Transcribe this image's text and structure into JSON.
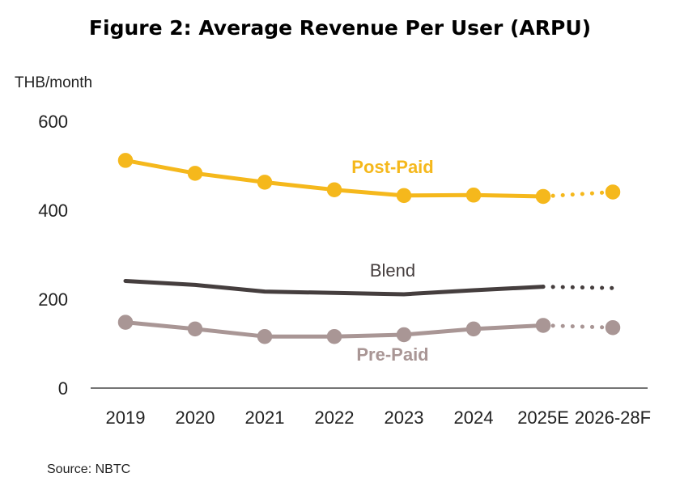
{
  "chart_data": {
    "type": "line",
    "title": "Figure 2: Average Revenue Per User (ARPU)",
    "ylabel": "THB/month",
    "xlabel": "",
    "categories": [
      "2019",
      "2020",
      "2021",
      "2022",
      "2023",
      "2024",
      "2025E",
      "2026-28F"
    ],
    "yticks": [
      0,
      200,
      400,
      600
    ],
    "ylim": [
      0,
      600
    ],
    "grid": false,
    "source": "Source: NBTC",
    "series": [
      {
        "name": "Post-Paid",
        "color": "#F5B81C",
        "markers": true,
        "values": [
          512,
          483,
          463,
          446,
          433,
          434,
          431,
          441
        ]
      },
      {
        "name": "Blend",
        "color": "#453E3E",
        "markers": false,
        "values": [
          241,
          232,
          217,
          214,
          211,
          220,
          228,
          225
        ]
      },
      {
        "name": "Pre-Paid",
        "color": "#A99695",
        "markers": true,
        "values": [
          148,
          133,
          116,
          116,
          120,
          133,
          141,
          136
        ]
      }
    ],
    "forecast_from_index": 6
  }
}
